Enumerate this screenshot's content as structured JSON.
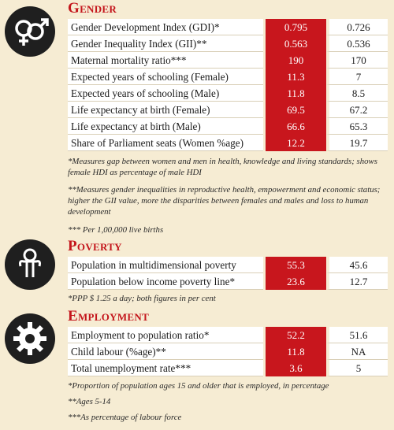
{
  "gender": {
    "heading": "Gender",
    "rows": [
      {
        "label": "Gender Development Index (GDI)*",
        "v1": "0.795",
        "v2": "0.726"
      },
      {
        "label": "Gender Inequality Index (GII)**",
        "v1": "0.563",
        "v2": "0.536"
      },
      {
        "label": "Maternal mortality ratio***",
        "v1": "190",
        "v2": "170"
      },
      {
        "label": "Expected years of schooling (Female)",
        "v1": "11.3",
        "v2": "7"
      },
      {
        "label": "Expected years of schooling (Male)",
        "v1": "11.8",
        "v2": "8.5"
      },
      {
        "label": "Life expectancy at birth (Female)",
        "v1": "69.5",
        "v2": "67.2"
      },
      {
        "label": "Life expectancy at birth (Male)",
        "v1": "66.6",
        "v2": "65.3"
      },
      {
        "label": "Share of Parliament seats (Women %age)",
        "v1": "12.2",
        "v2": "19.7"
      }
    ],
    "notes": [
      "*Measures gap between women and men in health, knowledge and living standards; shows female HDI as percentage of male HDI",
      "**Measures gender inequalities in reproductive health, empowerment and economic status; higher the GII value, more the disparities between females and males and loss to human development",
      "*** Per 1,00,000 live births"
    ]
  },
  "poverty": {
    "heading": "Poverty",
    "rows": [
      {
        "label": "Population in multidimensional poverty",
        "v1": "55.3",
        "v2": "45.6"
      },
      {
        "label": "Population below income poverty line*",
        "v1": "23.6",
        "v2": "12.7"
      }
    ],
    "notes": [
      "*PPP $ 1.25 a day; both figures in per cent"
    ]
  },
  "employment": {
    "heading": "Employment",
    "rows": [
      {
        "label": "Employment to population ratio*",
        "v1": "52.2",
        "v2": "51.6"
      },
      {
        "label": "Child labour (%age)**",
        "v1": "11.8",
        "v2": "NA"
      },
      {
        "label": "Total unemployment rate***",
        "v1": "3.6",
        "v2": "5"
      }
    ],
    "notes": [
      "*Proportion of population ages 15 and older that is employed, in percentage",
      "**Ages 5-14",
      "***As percentage of labour force"
    ]
  },
  "colors": {
    "accent": "#c4161c",
    "value_fill": "#c8161d",
    "background": "#f6ecd3",
    "icon_fill": "#1f1f1f"
  },
  "icons": {
    "gender": "gender-symbols-icon",
    "poverty": "person-icon",
    "employment": "gear-icon"
  }
}
